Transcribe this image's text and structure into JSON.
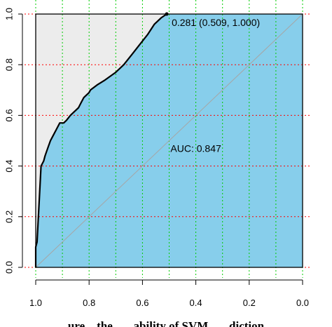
{
  "chart_data": {
    "type": "line",
    "title": "",
    "xlabel": "",
    "ylabel": "",
    "x_axis_reversed": true,
    "xlim": [
      1.0,
      0.0
    ],
    "ylim": [
      0.0,
      1.0
    ],
    "x_ticks": [
      "1.0",
      "0.8",
      "0.6",
      "0.4",
      "0.2",
      "0.0"
    ],
    "y_ticks": [
      "0.0",
      "0.2",
      "0.4",
      "0.6",
      "0.8",
      "1.0"
    ],
    "grid": true,
    "x_grid_color": "#00cc00",
    "y_grid_color": "#ff0000",
    "fill_under_color": "#87ceeb",
    "fill_over_color": "#ececec",
    "diagonal_color": "#a6a6a6",
    "series": [
      {
        "specificity": [
          1.0,
          1.0,
          0.995,
          0.99,
          0.985,
          0.98,
          0.975,
          0.97,
          0.965,
          0.955,
          0.945,
          0.935,
          0.925,
          0.91,
          0.895,
          0.885,
          0.87,
          0.86,
          0.85,
          0.84,
          0.83,
          0.82,
          0.8,
          0.795,
          0.77,
          0.74,
          0.7,
          0.67,
          0.64,
          0.61,
          0.58,
          0.555,
          0.53,
          0.509,
          0.509
        ],
        "sensitivity": [
          0.0,
          0.08,
          0.1,
          0.2,
          0.3,
          0.4,
          0.41,
          0.42,
          0.44,
          0.47,
          0.5,
          0.52,
          0.54,
          0.57,
          0.57,
          0.58,
          0.6,
          0.61,
          0.62,
          0.63,
          0.65,
          0.67,
          0.69,
          0.7,
          0.72,
          0.74,
          0.77,
          0.8,
          0.84,
          0.88,
          0.92,
          0.96,
          0.985,
          1.0,
          1.0
        ]
      }
    ],
    "annotations": [
      {
        "text": "0.281 (0.509, 1.000)",
        "x": 0.509,
        "y": 1.0
      },
      {
        "text": "AUC: 0.847",
        "x": 0.4,
        "y": 0.47
      }
    ],
    "caption": "...ure... the... ...ability of SVM... ...diction..."
  }
}
